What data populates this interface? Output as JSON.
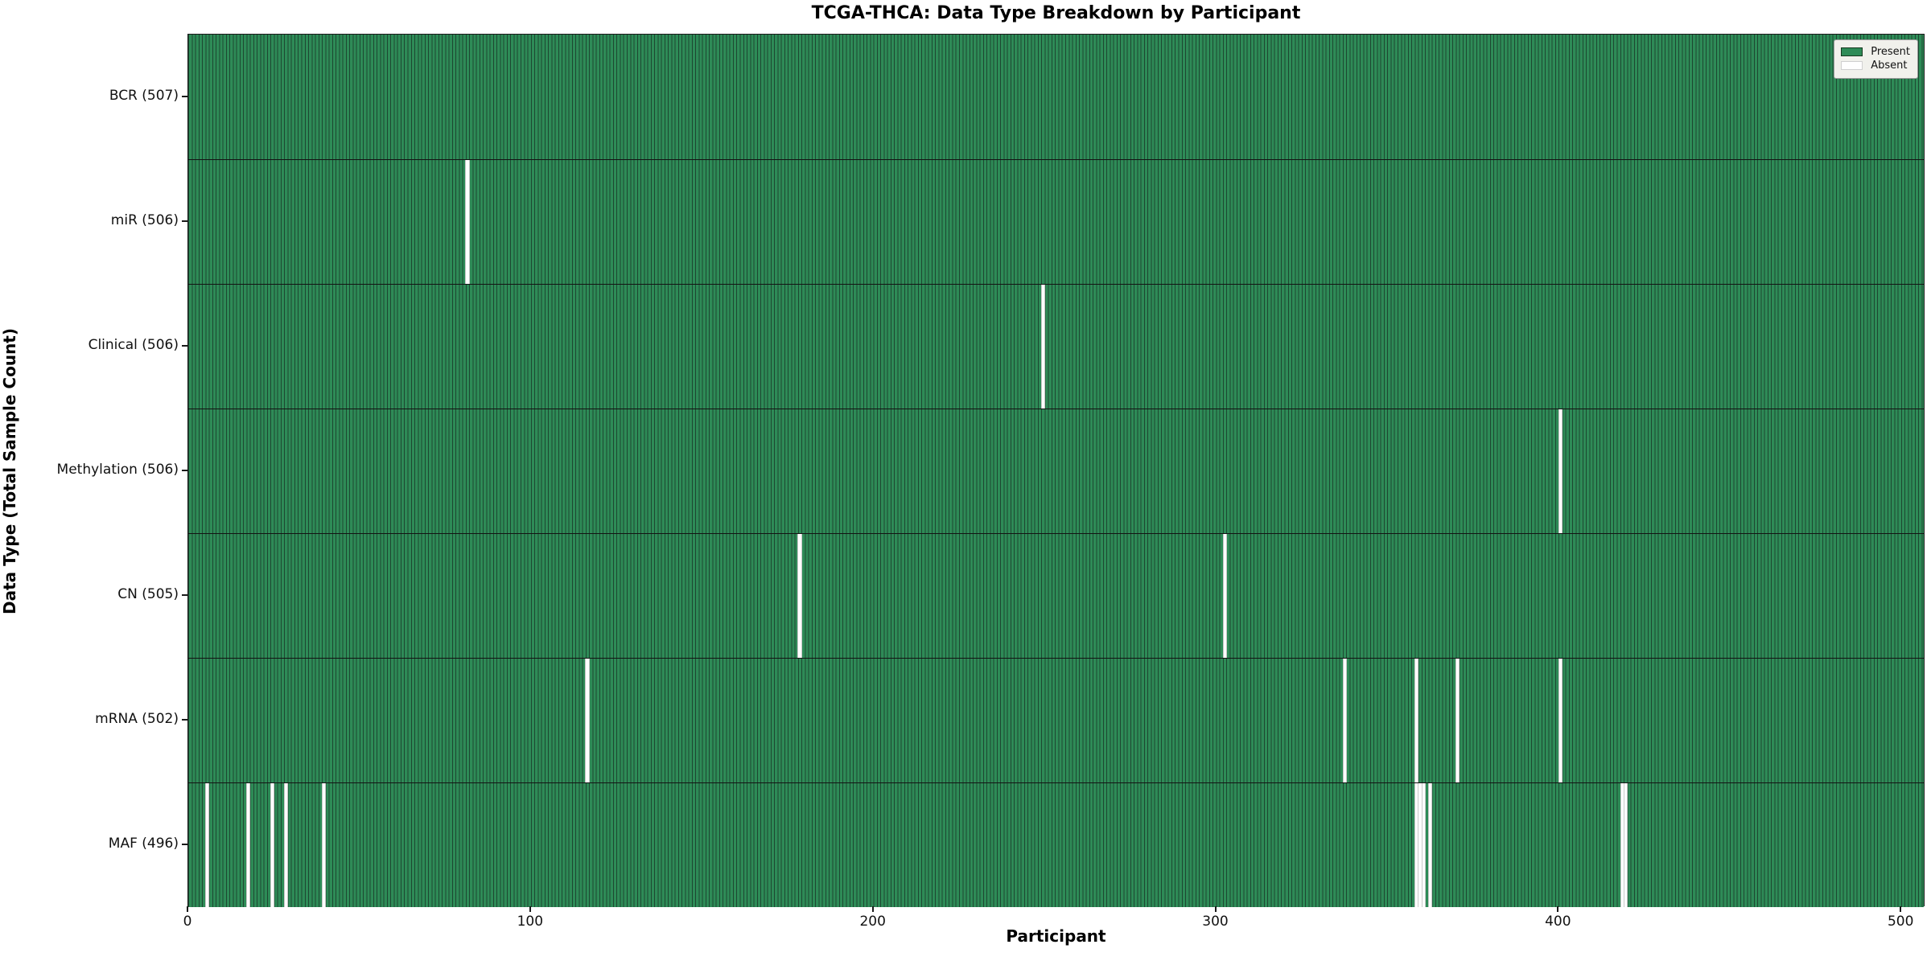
{
  "title": "TCGA-THCA: Data Type Breakdown by Participant",
  "x_axis_label": "Participant",
  "y_axis_label": "Data Type (Total Sample Count)",
  "legend": {
    "present_label": "Present",
    "absent_label": "Absent"
  },
  "colors": {
    "present": "#2e8b57",
    "present_edge": "#1d4731",
    "absent": "#ffffff",
    "frame": "#1a1a1a",
    "legend_background": "#f1f1ec"
  },
  "chart_data": {
    "type": "heatmap",
    "title": "TCGA-THCA: Data Type Breakdown by Participant",
    "xlabel": "Participant",
    "ylabel": "Data Type (Total Sample Count)",
    "legend_entries": [
      "Present",
      "Absent"
    ],
    "legend_position": "upper right",
    "grid": false,
    "n_participants": 507,
    "xlim": [
      0,
      507
    ],
    "x_ticks": [
      0,
      100,
      200,
      300,
      400,
      500
    ],
    "rows": [
      {
        "label": "BCR (507)",
        "data_type": "BCR",
        "total_sample_count": 507,
        "absent_participants": []
      },
      {
        "label": "miR (506)",
        "data_type": "miR",
        "total_sample_count": 506,
        "absent_participants": [
          81
        ]
      },
      {
        "label": "Clinical (506)",
        "data_type": "Clinical",
        "total_sample_count": 506,
        "absent_participants": [
          249
        ]
      },
      {
        "label": "Methylation (506)",
        "data_type": "Methylation",
        "total_sample_count": 506,
        "absent_participants": [
          400
        ]
      },
      {
        "label": "CN (505)",
        "data_type": "CN",
        "total_sample_count": 505,
        "absent_participants": [
          178,
          302
        ]
      },
      {
        "label": "mRNA (502)",
        "data_type": "mRNA",
        "total_sample_count": 502,
        "absent_participants": [
          116,
          337,
          358,
          370,
          400
        ]
      },
      {
        "label": "MAF (496)",
        "data_type": "MAF",
        "total_sample_count": 496,
        "absent_participants": [
          5,
          17,
          24,
          28,
          39,
          358,
          359,
          360,
          362,
          418,
          419
        ]
      }
    ]
  }
}
